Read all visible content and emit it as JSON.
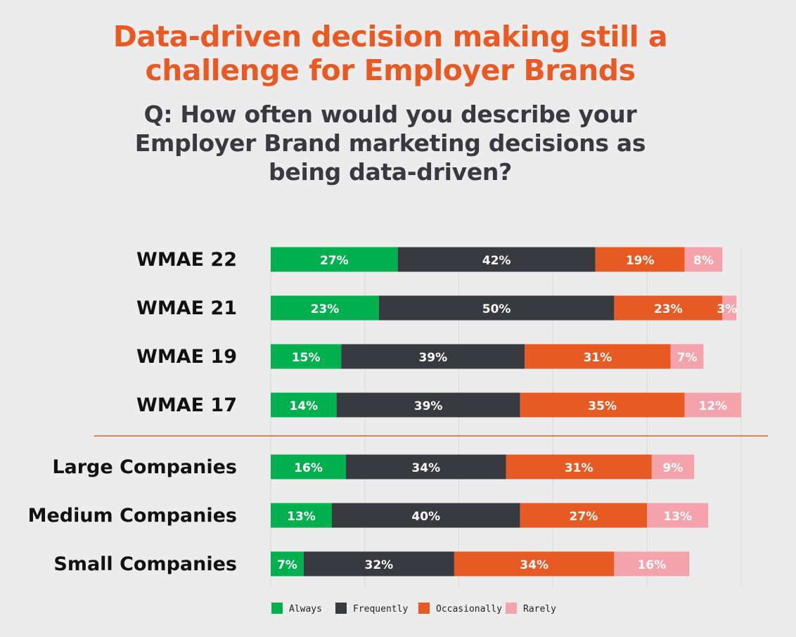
{
  "header": {
    "title_line1": "Data-driven decision making still a",
    "title_line2": "challenge for Employer Brands",
    "question_line1": "Q: How often would you describe your",
    "question_line2": "Employer Brand marketing decisions as",
    "question_line3": "being data-driven?"
  },
  "colors": {
    "always": "#00b04f",
    "frequently": "#393a40",
    "occasionally": "#e85a24",
    "rarely": "#f4a3ad",
    "title": "#e85a24",
    "divider": "#e85a24",
    "background": "#ececec"
  },
  "chart_data": {
    "type": "bar",
    "orientation": "horizontal",
    "stacked": true,
    "value_format": "percent",
    "xlim": [
      0,
      100
    ],
    "grid": true,
    "legend_position": "bottom",
    "title": "Data-driven decision making still a challenge for Employer Brands",
    "subtitle": "Q: How often would you describe your Employer Brand marketing decisions as being data-driven?",
    "categories": [
      "WMAE 22",
      "WMAE 21",
      "WMAE 19",
      "WMAE 17",
      "Large Companies",
      "Medium Companies",
      "Small Companies"
    ],
    "divider_after_index": 3,
    "series": [
      {
        "name": "Always",
        "key": "always",
        "values": [
          27,
          23,
          15,
          14,
          16,
          13,
          7
        ]
      },
      {
        "name": "Frequently",
        "key": "frequently",
        "values": [
          42,
          50,
          39,
          39,
          34,
          40,
          32
        ]
      },
      {
        "name": "Occasionally",
        "key": "occasionally",
        "values": [
          19,
          23,
          31,
          35,
          31,
          27,
          34
        ]
      },
      {
        "name": "Rarely",
        "key": "rarely",
        "values": [
          8,
          3,
          7,
          12,
          9,
          13,
          16
        ]
      }
    ]
  }
}
